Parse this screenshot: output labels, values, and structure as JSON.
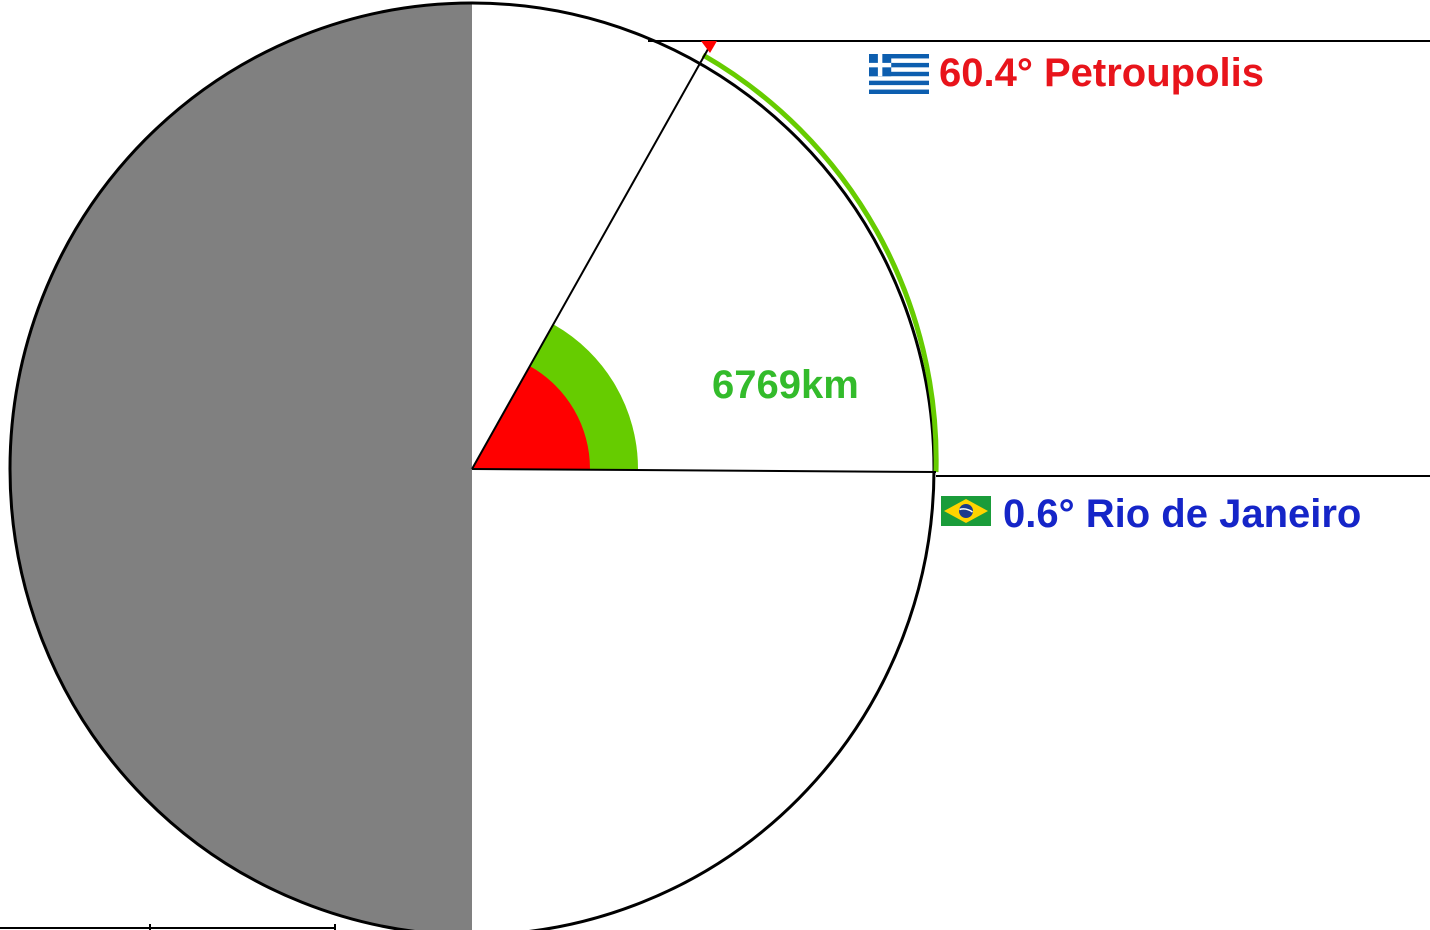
{
  "diagram": {
    "colors": {
      "background": "#ffffff",
      "dark_half": "#808080",
      "outline": "#000000",
      "arc": "#66cc00",
      "angle_wedge": "#ff0000",
      "upper_city_text": "#e8141b",
      "lower_city_text": "#1525c8",
      "distance_text": "#33bb2b"
    },
    "upper_city": {
      "angle": "60.4°",
      "name": "Petroupolis",
      "flag_icon": "greece-flag-icon"
    },
    "lower_city": {
      "angle": "0.6°",
      "name": "Rio de Janeiro",
      "flag_icon": "brazil-flag-icon"
    },
    "arc_distance": "6769km"
  }
}
